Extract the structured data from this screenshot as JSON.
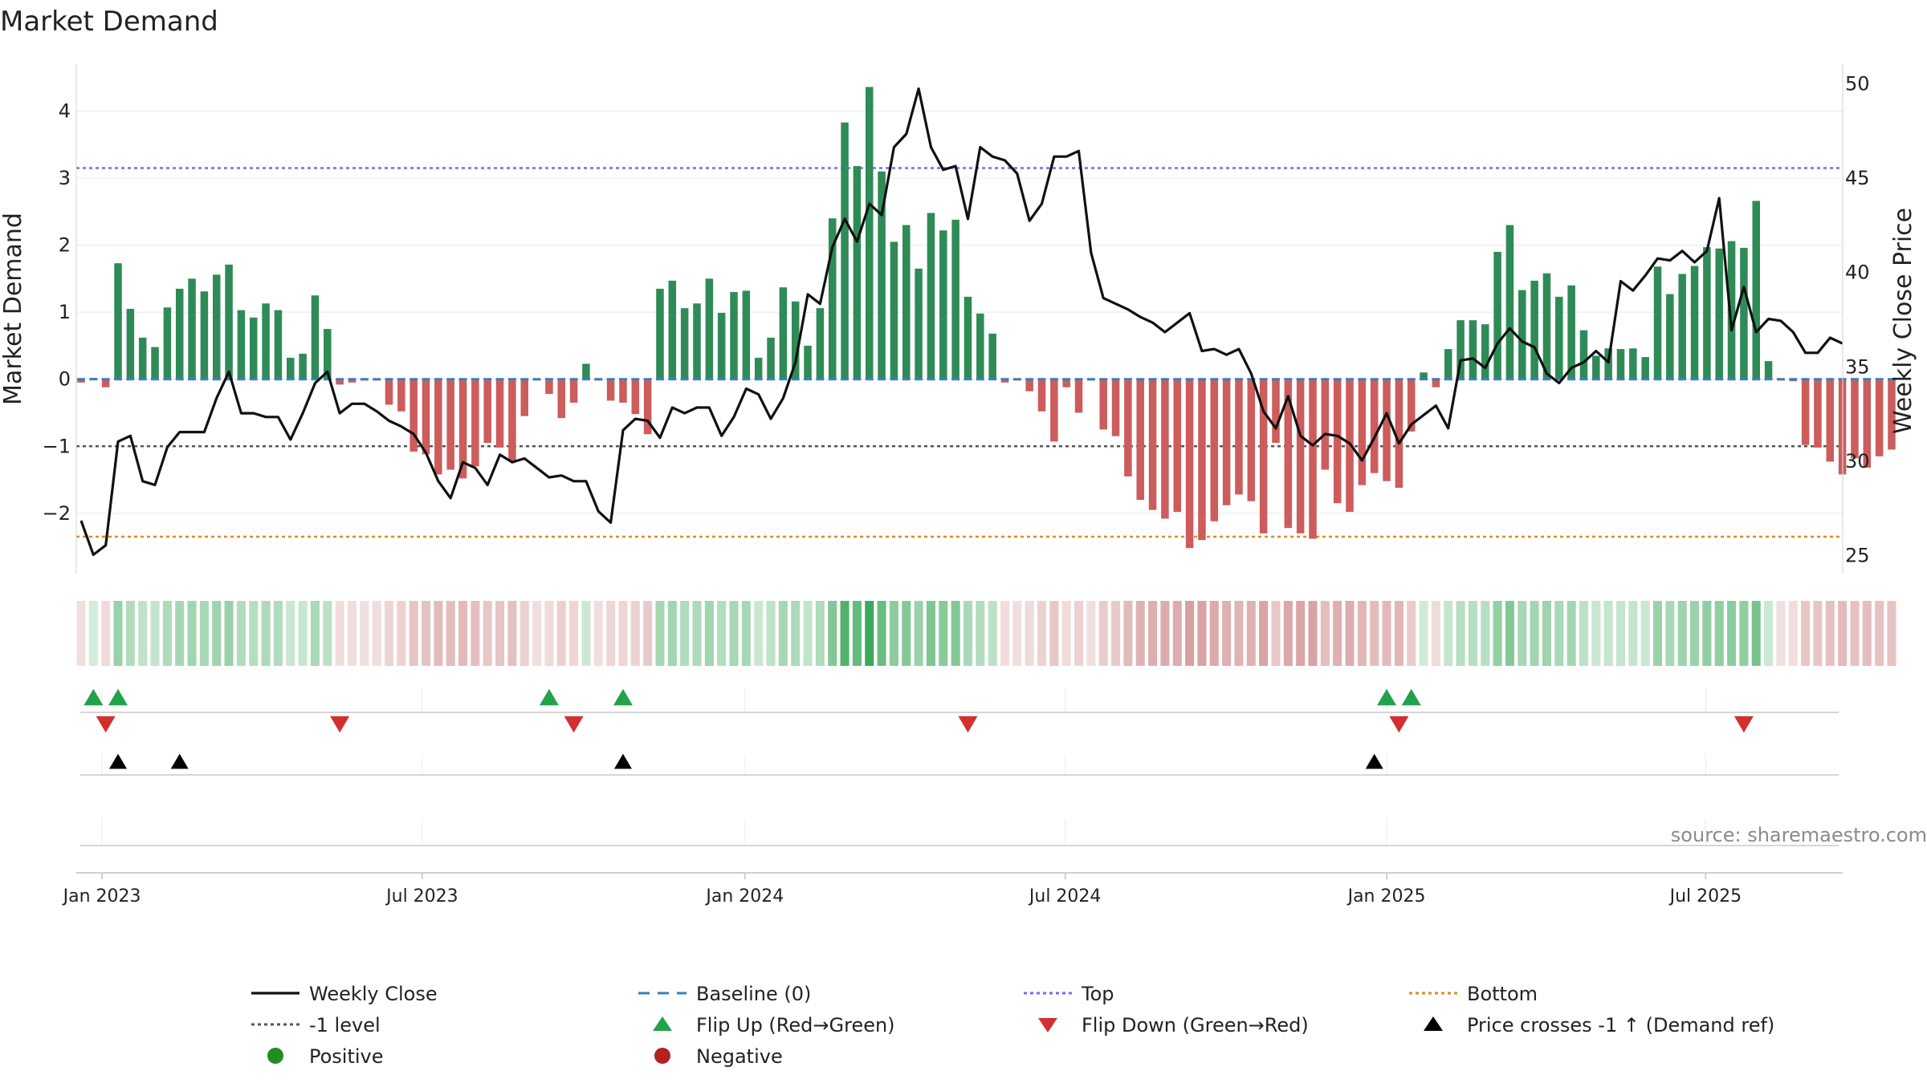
{
  "chart_data": {
    "type": "bar",
    "title": "Market Demand",
    "ylabel": "Market Demand",
    "y2label": "Weekly Close Price",
    "ylim": [
      -2.9,
      4.7
    ],
    "y2lim": [
      24.0,
      51.0
    ],
    "yticks": [
      -2,
      -1,
      0,
      1,
      2,
      3,
      4
    ],
    "y2ticks": [
      25,
      30,
      35,
      40,
      45,
      50
    ],
    "x_start_week": 0,
    "x_tick_labels": [
      {
        "label": "Jan 2023",
        "week": 1.7
      },
      {
        "label": "Jul 2023",
        "week": 27.7
      },
      {
        "label": "Jan 2024",
        "week": 53.9
      },
      {
        "label": "Jul 2024",
        "week": 79.9
      },
      {
        "label": "Jan 2025",
        "week": 106.0
      },
      {
        "label": "Jul 2025",
        "week": 131.9
      }
    ],
    "reference_lines": {
      "top": 3.15,
      "bottom": -2.35,
      "minus_one": -1,
      "baseline": 0
    },
    "colors": {
      "positive": "#2e8b57",
      "negative": "#cd5c5c",
      "close": "#111111",
      "baseline": "#3a7fbf",
      "top": "#7b68ee",
      "bottom": "#e08a1e",
      "minus_one": "#555555",
      "flip_up": "#22a24a",
      "flip_down": "#d32f2f",
      "cross": "#000000",
      "positive_dot": "#228b22",
      "negative_dot": "#b22222"
    },
    "demand": [
      -0.05,
      0.02,
      -0.12,
      1.73,
      1.05,
      0.62,
      0.48,
      1.07,
      1.35,
      1.5,
      1.31,
      1.56,
      1.71,
      1.03,
      0.92,
      1.13,
      1.03,
      0.32,
      0.38,
      1.25,
      0.75,
      -0.08,
      -0.05,
      -0.02,
      -0.02,
      -0.38,
      -0.48,
      -1.08,
      -1.12,
      -1.42,
      -1.35,
      -1.48,
      -1.3,
      -0.95,
      -1.02,
      -1.22,
      -0.55,
      -0.02,
      -0.22,
      -0.58,
      -0.35,
      0.23,
      -0.02,
      -0.32,
      -0.35,
      -0.52,
      -0.82,
      1.35,
      1.47,
      1.06,
      1.13,
      1.5,
      0.99,
      1.3,
      1.32,
      0.32,
      0.62,
      1.37,
      1.16,
      0.5,
      1.06,
      2.4,
      3.83,
      3.18,
      4.36,
      3.1,
      2.05,
      2.3,
      1.65,
      2.48,
      2.22,
      2.38,
      1.23,
      0.98,
      0.68,
      -0.05,
      -0.02,
      -0.18,
      -0.48,
      -0.93,
      -0.12,
      -0.5,
      -0.02,
      -0.75,
      -0.85,
      -1.45,
      -1.8,
      -1.95,
      -2.08,
      -1.98,
      -2.52,
      -2.4,
      -2.12,
      -1.88,
      -1.72,
      -1.82,
      -2.3,
      -0.95,
      -2.22,
      -2.3,
      -2.38,
      -1.35,
      -1.85,
      -1.98,
      -1.58,
      -1.4,
      -1.52,
      -1.62,
      -0.78,
      0.1,
      -0.12,
      0.45,
      0.88,
      0.88,
      0.82,
      1.9,
      2.3,
      1.33,
      1.47,
      1.58,
      1.23,
      1.4,
      0.73,
      0.35,
      0.46,
      0.45,
      0.46,
      0.33,
      1.68,
      1.27,
      1.57,
      1.69,
      1.97,
      1.95,
      2.06,
      1.96,
      2.66,
      0.27,
      -0.02,
      -0.03,
      -0.98,
      -1.02,
      -1.23,
      -1.42,
      -1.18,
      -1.32,
      -1.15,
      -1.05
    ],
    "close": [
      26.8,
      25.0,
      25.5,
      31.0,
      31.3,
      28.9,
      28.7,
      30.7,
      31.5,
      31.5,
      31.5,
      33.3,
      34.7,
      32.5,
      32.5,
      32.3,
      32.3,
      31.1,
      32.5,
      34.1,
      34.7,
      32.5,
      33.0,
      33.0,
      32.6,
      32.1,
      31.8,
      31.4,
      30.4,
      28.9,
      28.0,
      29.9,
      29.6,
      28.7,
      30.3,
      29.9,
      30.1,
      29.6,
      29.1,
      29.2,
      28.9,
      28.9,
      27.3,
      26.7,
      31.6,
      32.2,
      32.1,
      31.2,
      32.8,
      32.5,
      32.8,
      32.8,
      31.3,
      32.3,
      33.8,
      33.5,
      32.2,
      33.3,
      35.2,
      38.8,
      38.3,
      41.3,
      42.8,
      41.6,
      43.6,
      43.0,
      46.6,
      47.3,
      49.7,
      46.6,
      45.4,
      45.6,
      42.8,
      46.6,
      46.1,
      45.9,
      45.2,
      42.7,
      43.6,
      46.1,
      46.1,
      46.4,
      41.0,
      38.6,
      38.3,
      38.0,
      37.6,
      37.3,
      36.8,
      37.3,
      37.8,
      35.8,
      35.9,
      35.6,
      35.9,
      34.6,
      32.6,
      31.7,
      33.4,
      31.3,
      30.8,
      31.4,
      31.3,
      30.9,
      30.0,
      31.2,
      32.5,
      30.9,
      31.9,
      32.4,
      32.9,
      31.7,
      35.3,
      35.4,
      34.9,
      36.2,
      37.0,
      36.3,
      36.0,
      34.6,
      34.1,
      34.9,
      35.2,
      35.8,
      35.2,
      39.5,
      39.0,
      39.8,
      40.7,
      40.6,
      41.1,
      40.5,
      41.1,
      43.9,
      36.9,
      39.2,
      36.8,
      37.5,
      37.4,
      36.8,
      35.7,
      35.7,
      36.5,
      36.2
    ],
    "heat_strip": "Demand strength strip",
    "flip_up_weeks": [
      1,
      3,
      38,
      44,
      106,
      108
    ],
    "flip_down_weeks": [
      2,
      21,
      40,
      72,
      107,
      135
    ],
    "cross_weeks": [
      3,
      8,
      44,
      105
    ],
    "source": "source: sharemaestro.com",
    "legend": [
      {
        "label": "Weekly Close",
        "kind": "line"
      },
      {
        "label": "Baseline (0)",
        "kind": "dash"
      },
      {
        "label": "Top",
        "kind": "dotted-top"
      },
      {
        "label": "Bottom",
        "kind": "dotted-bottom"
      },
      {
        "label": "-1 level",
        "kind": "dotted-minus"
      },
      {
        "label": "Flip Up (Red→Green)",
        "kind": "tri-up"
      },
      {
        "label": "Flip Down (Green→Red)",
        "kind": "tri-down"
      },
      {
        "label": "Price crosses -1 ↑ (Demand ref)",
        "kind": "tri-black"
      },
      {
        "label": "Positive",
        "kind": "dot-pos"
      },
      {
        "label": "Negative",
        "kind": "dot-neg"
      }
    ]
  }
}
